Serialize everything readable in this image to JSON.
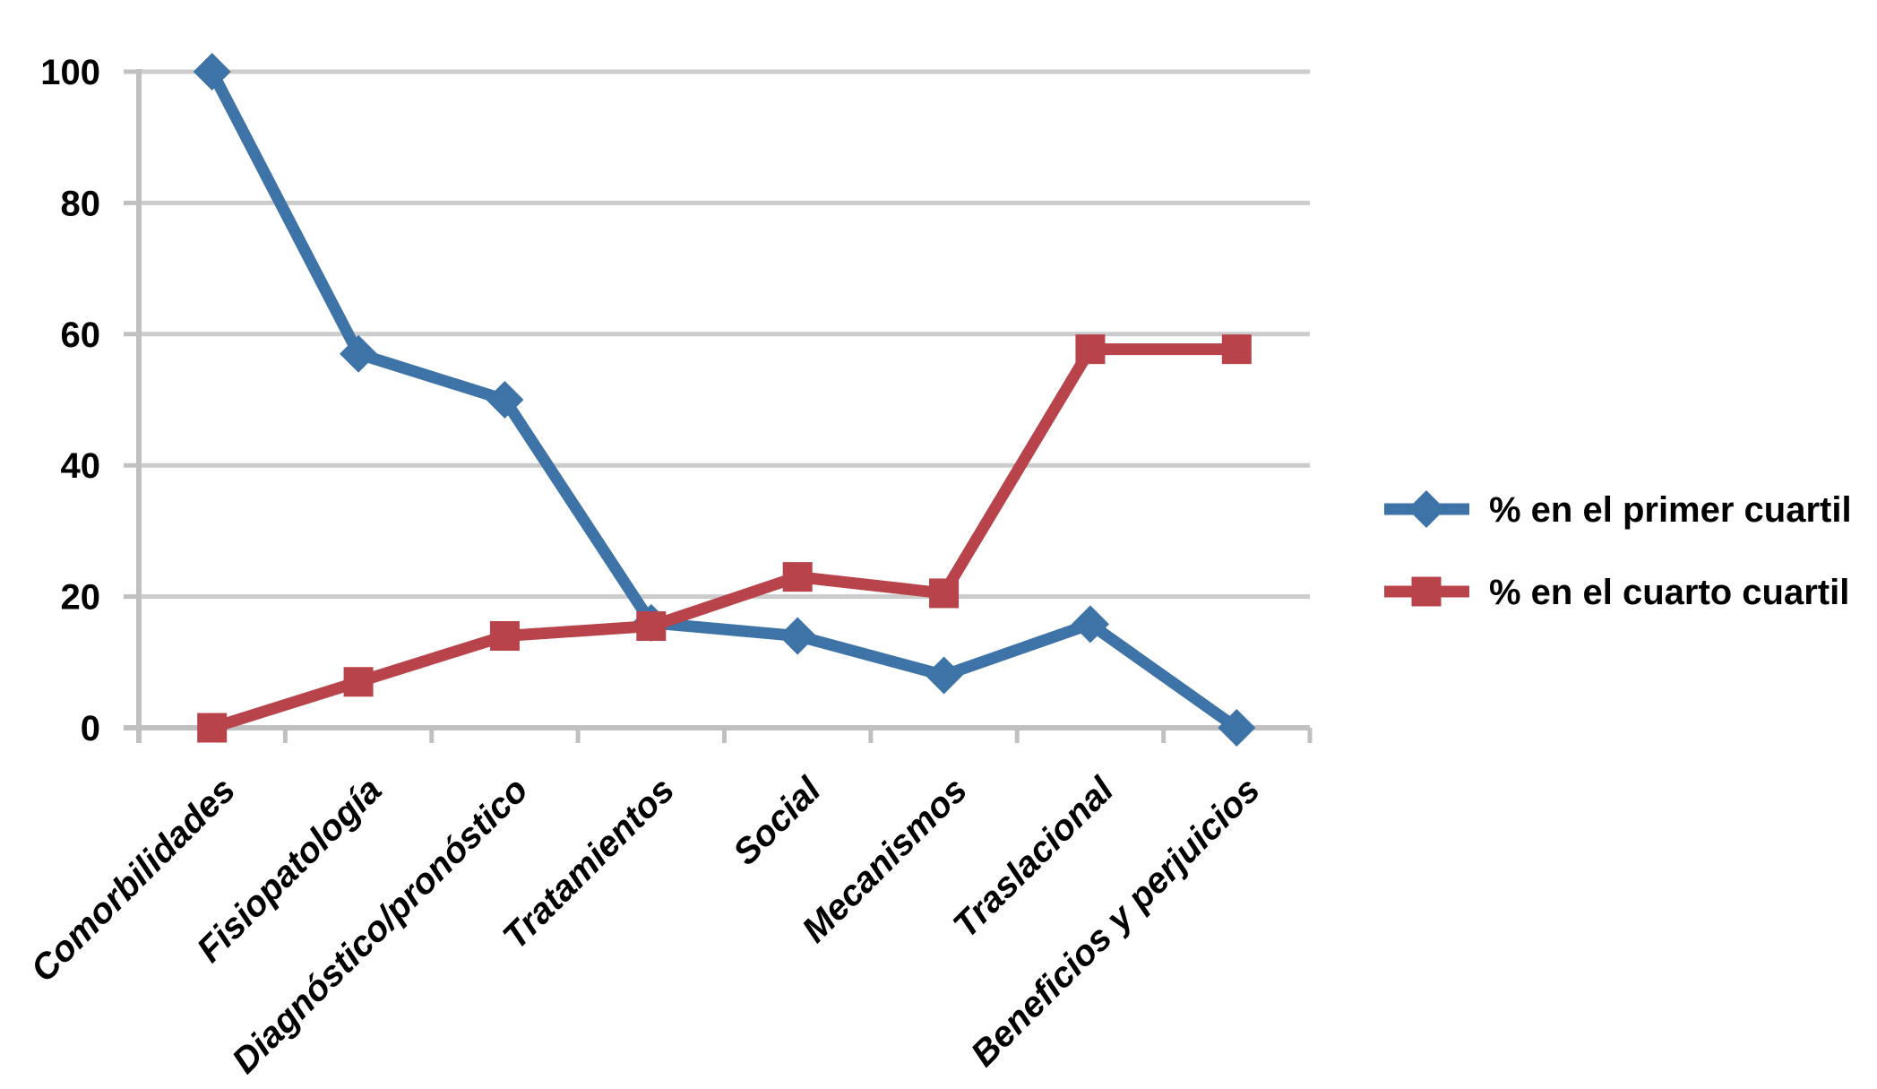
{
  "chart_data": {
    "type": "line",
    "title": "",
    "categories": [
      "Comorbilidades",
      "Fisiopatología",
      "Diagnóstico/pronóstico",
      "Tratamientos",
      "Social",
      "Mecanismos",
      "Traslacional",
      "Beneficios y perjuicios"
    ],
    "series": [
      {
        "name": "% en el primer cuartil",
        "marker": "diamond",
        "color": "#3E73A7",
        "values": [
          100,
          57,
          50,
          16,
          14,
          8,
          15.8,
          0
        ]
      },
      {
        "name": "% en el cuarto cuartil",
        "marker": "square",
        "color": "#B8434A",
        "values": [
          0,
          7,
          14,
          15.5,
          23,
          20.5,
          57.7,
          57.7
        ]
      }
    ],
    "y_axis": {
      "min": 0,
      "max": 100,
      "tick_interval": 20,
      "tick_labels": [
        "0",
        "20",
        "40",
        "60",
        "80",
        "100"
      ]
    },
    "x_label_rotation_deg": 45,
    "grid": true,
    "legend_position": "right",
    "colors": {
      "background": "#FFFFFF",
      "gridline": "#CCCCCC",
      "axis": "#C0C0C0",
      "text": "#000000"
    }
  }
}
